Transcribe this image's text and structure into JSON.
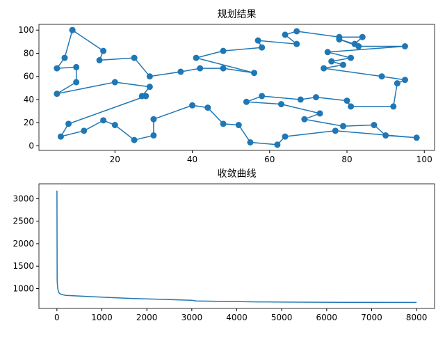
{
  "chart_data": [
    {
      "type": "route",
      "title": "规划结果",
      "color": "#1f77b4",
      "x": [
        9,
        17,
        16,
        25,
        29,
        37,
        42,
        48,
        56,
        41,
        48,
        58,
        57,
        67,
        64,
        67,
        78,
        84,
        82,
        78,
        83,
        95,
        75,
        81,
        76,
        79,
        74,
        89,
        95,
        93,
        92,
        81,
        80,
        72,
        68,
        58,
        54,
        63,
        73,
        69,
        79,
        87,
        90,
        98,
        77,
        64,
        62,
        55,
        52,
        48,
        44,
        40,
        30,
        30,
        25,
        20,
        17,
        12,
        6,
        8,
        28,
        27,
        29,
        20,
        5,
        10,
        10,
        5,
        7,
        9
      ],
      "y": [
        100,
        82,
        74,
        76,
        60,
        64,
        67,
        67,
        63,
        76,
        82,
        85,
        91,
        88,
        96,
        99,
        94,
        94,
        88,
        92,
        86,
        86,
        81,
        76,
        73,
        70,
        67,
        60,
        57,
        54,
        34,
        34,
        39,
        42,
        40,
        43,
        38,
        36,
        28,
        23,
        17,
        18,
        9,
        7,
        13,
        8,
        1,
        3,
        18,
        19,
        33,
        35,
        23,
        9,
        5,
        18,
        22,
        13,
        8,
        19,
        43,
        43,
        51,
        55,
        45,
        55,
        68,
        67,
        76,
        100
      ],
      "xlim": [
        0.35,
        102.65
      ],
      "ylim": [
        -3.95,
        104.95
      ],
      "xticks": [
        20,
        40,
        60,
        80,
        100
      ],
      "yticks": [
        0,
        20,
        40,
        60,
        80,
        100
      ]
    },
    {
      "type": "line",
      "title": "收敛曲线",
      "color": "#1f77b4",
      "x": [
        0,
        5,
        10,
        20,
        30,
        50,
        100,
        200,
        600,
        1000,
        1200,
        1700,
        2400,
        3000,
        3100,
        3700,
        4500,
        5100,
        6300,
        8000
      ],
      "y": [
        3180,
        1200,
        1100,
        1000,
        950,
        900,
        870,
        850,
        830,
        810,
        800,
        780,
        760,
        740,
        725,
        715,
        705,
        700,
        695,
        692
      ],
      "xlim": [
        -400,
        8400
      ],
      "ylim": [
        559,
        3331
      ],
      "xticks": [
        0,
        1000,
        2000,
        3000,
        4000,
        5000,
        6000,
        7000,
        8000
      ],
      "yticks": [
        1000,
        1500,
        2000,
        2500,
        3000
      ]
    }
  ]
}
